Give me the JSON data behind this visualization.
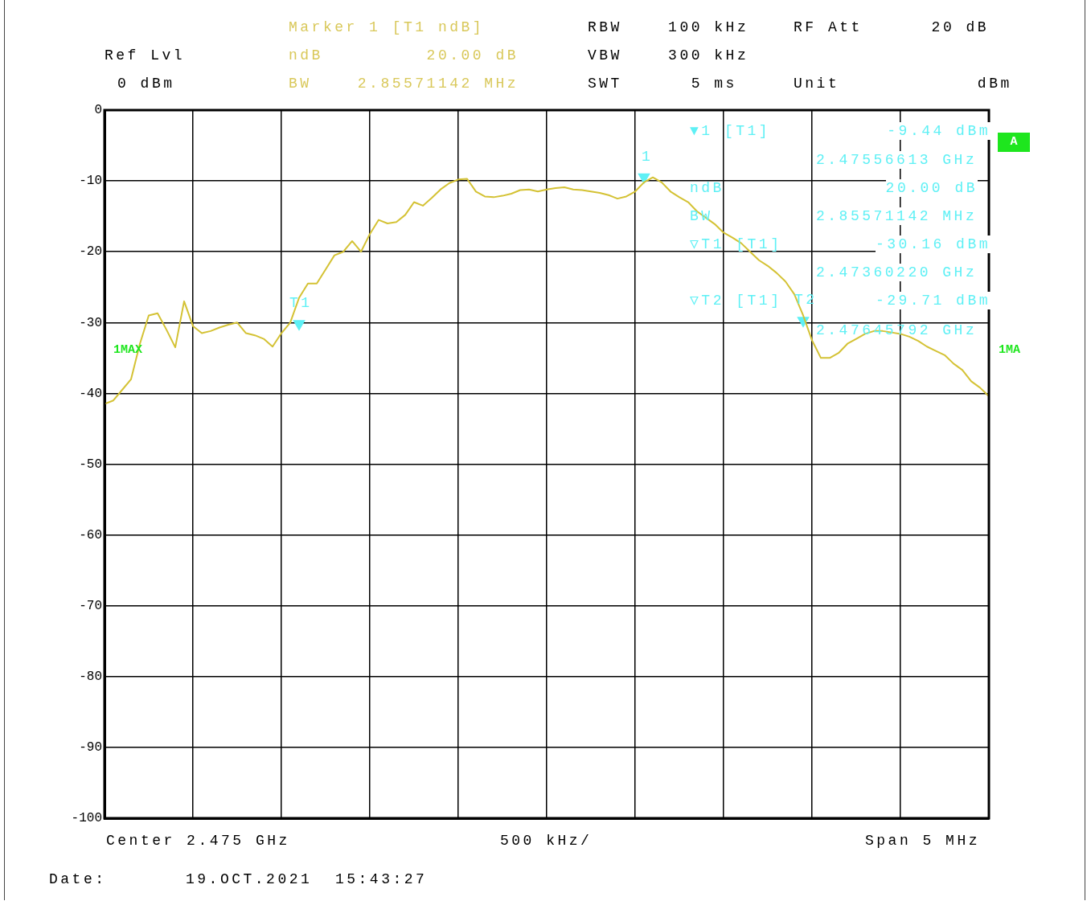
{
  "chart_data": {
    "type": "line",
    "categories": [
      null,
      null,
      null,
      null,
      null,
      null,
      null,
      null,
      null,
      null,
      null,
      null,
      null,
      null,
      null,
      null,
      null,
      null,
      null,
      null,
      null,
      null,
      null,
      null,
      null,
      null,
      null,
      null,
      null,
      null,
      null,
      null,
      null,
      null,
      null,
      null,
      null,
      null,
      null,
      null,
      null,
      null,
      null,
      null,
      null,
      null,
      null,
      null,
      null,
      null,
      null,
      null,
      null,
      null,
      null,
      null,
      null,
      null,
      null,
      null,
      null,
      null,
      null,
      null,
      null,
      null,
      null,
      null,
      null,
      null,
      null,
      null,
      null,
      null,
      null,
      null,
      null,
      null,
      null,
      null,
      null,
      null,
      null,
      null,
      null,
      null,
      null,
      null,
      null,
      null,
      null,
      null,
      null,
      null,
      null,
      null,
      null,
      null,
      null,
      null,
      null
    ],
    "series": [
      {
        "color": "#d4c234",
        "values": [
          -41.5,
          -41,
          -39.5,
          -38,
          -33,
          -29,
          -28.7,
          -31,
          -33.5,
          -27,
          -30.5,
          -31.5,
          -31.2,
          -30.7,
          -30.3,
          -30,
          -31.5,
          -31.8,
          -32.3,
          -33.4,
          -31.5,
          -30,
          -26.5,
          -24.5,
          -24.5,
          -22.5,
          -20.5,
          -20,
          -18.5,
          -20,
          -17.5,
          -15.5,
          -16,
          -15.8,
          -14.8,
          -13,
          -13.5,
          -12.4,
          -11.2,
          -10.3,
          -9.8,
          -9.7,
          -11.5,
          -12.2,
          -12.3,
          -12.1,
          -11.8,
          -11.3,
          -11.2,
          -11.5,
          -11.2,
          -11,
          -10.9,
          -11.2,
          -11.3,
          -11.5,
          -11.7,
          -12,
          -12.5,
          -12.2,
          -11.5,
          -10.2,
          -9.5,
          -10.2,
          -11.5,
          -12.3,
          -13,
          -14.3,
          -15.2,
          -16.1,
          -17.3,
          -18,
          -18.8,
          -20,
          -21.2,
          -22,
          -23,
          -24.2,
          -26,
          -29,
          -32.5,
          -35,
          -35,
          -34.3,
          -33,
          -32.3,
          -31.6,
          -31.2,
          -31.2,
          -31.4,
          -31.6,
          -32,
          -32.6,
          -33.4,
          -34,
          -34.6,
          -35.8,
          -36.7,
          -38.3,
          -39.2,
          -40.4
        ]
      },
      {
        "type": "scatter",
        "marker": "triangle",
        "color": "#5ef0f5",
        "values": [
          null,
          null,
          null,
          null,
          null,
          null,
          null,
          null,
          null,
          null,
          null,
          null,
          null,
          null,
          null,
          null,
          null,
          null,
          null,
          null,
          null,
          null,
          -30.16,
          null,
          null,
          null,
          null,
          null,
          null,
          null,
          null,
          null,
          null,
          null,
          null,
          null,
          null,
          null,
          null,
          null,
          null,
          null,
          null,
          null,
          null,
          null,
          null,
          null,
          null,
          null,
          null,
          null,
          null,
          null,
          null,
          null,
          null,
          null,
          null,
          null,
          null,
          -9.44,
          null,
          null,
          null,
          null,
          null,
          null,
          null,
          null,
          null,
          null,
          null,
          null,
          null,
          null,
          null,
          null,
          null,
          -29.71,
          null,
          null,
          null,
          null,
          null,
          null,
          null,
          null,
          null,
          null,
          null,
          null,
          null,
          null,
          null,
          null,
          null,
          null,
          null,
          null,
          null
        ]
      }
    ],
    "ylim": [
      -100,
      0
    ],
    "yticks": [
      0,
      -10,
      -20,
      -30,
      -40,
      -50,
      -60,
      -70,
      -80,
      -90,
      -100
    ],
    "grid": true,
    "tick_labels": "y",
    "annotations": [
      "Ref Lvl",
      "0 dBm",
      "Marker 1 [T1 ndB]",
      "ndB         20.00 dB",
      "BW    2.85571142 MHz",
      "RBW    100 kHz",
      "VBW    300 kHz",
      "SWT      5 ms",
      "RF Att      20 dB",
      "Unit            dBm",
      "▼1 [T1]",
      "-9.44 dBm",
      "2.47556613 GHz",
      "ndB",
      "20.00 dB",
      "BW",
      "2.85571142 MHz",
      "▽T1 [T1]",
      "-30.16 dBm",
      "2.47360220 GHz",
      "▽T2 [T1]",
      "-29.71 dBm",
      "2.47645792 GHz",
      "1",
      "T1",
      "T2",
      "1MAX",
      "1MA",
      "A",
      "Center 2.475 GHz",
      "500 kHz/",
      "Span 5 MHz",
      "Date:",
      "19.OCT.2021  15:43:27"
    ]
  }
}
